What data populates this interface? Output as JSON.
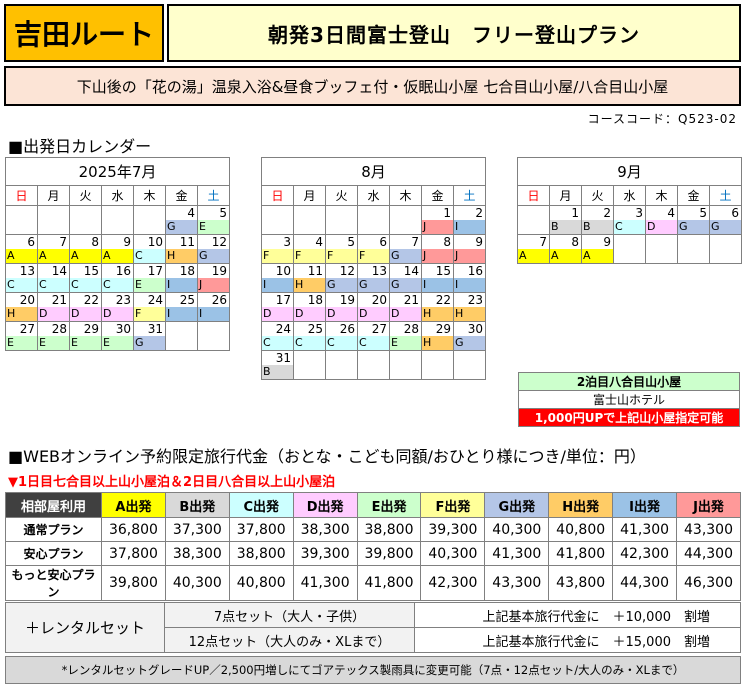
{
  "header": {
    "route": "吉田ルート",
    "title": "朝発3日間富士登山　フリー登山プラン",
    "subtitle": "下山後の「花の湯」温泉入浴&昼食ブッフェ付・仮眠山小屋 七合目山小屋/八合目山小屋",
    "course_code": "コースコード：Q523-02"
  },
  "calendar_section": {
    "label": "■出発日カレンダー"
  },
  "weekdays": [
    "日",
    "月",
    "火",
    "水",
    "木",
    "金",
    "土"
  ],
  "months": [
    {
      "title": "2025年7月",
      "weeks": [
        [
          null,
          null,
          null,
          null,
          null,
          {
            "d": "4",
            "g": "G"
          },
          {
            "d": "5",
            "g": "E"
          }
        ],
        [
          {
            "d": "6",
            "g": "A"
          },
          {
            "d": "7",
            "g": "A"
          },
          {
            "d": "8",
            "g": "A"
          },
          {
            "d": "9",
            "g": "A"
          },
          {
            "d": "10",
            "g": "C"
          },
          {
            "d": "11",
            "g": "H"
          },
          {
            "d": "12",
            "g": "G"
          }
        ],
        [
          {
            "d": "13",
            "g": "C"
          },
          {
            "d": "14",
            "g": "C"
          },
          {
            "d": "15",
            "g": "C"
          },
          {
            "d": "16",
            "g": "C"
          },
          {
            "d": "17",
            "g": "E"
          },
          {
            "d": "18",
            "g": "I"
          },
          {
            "d": "19",
            "g": "J"
          }
        ],
        [
          {
            "d": "20",
            "g": "H"
          },
          {
            "d": "21",
            "g": "D"
          },
          {
            "d": "22",
            "g": "D"
          },
          {
            "d": "23",
            "g": "D"
          },
          {
            "d": "24",
            "g": "F"
          },
          {
            "d": "25",
            "g": "I"
          },
          {
            "d": "26",
            "g": "I"
          }
        ],
        [
          {
            "d": "27",
            "g": "E"
          },
          {
            "d": "28",
            "g": "E"
          },
          {
            "d": "29",
            "g": "E"
          },
          {
            "d": "30",
            "g": "E"
          },
          {
            "d": "31",
            "g": "G"
          },
          null,
          null
        ]
      ]
    },
    {
      "title": "8月",
      "weeks": [
        [
          null,
          null,
          null,
          null,
          null,
          {
            "d": "1",
            "g": "J"
          },
          {
            "d": "2",
            "g": "I"
          }
        ],
        [
          {
            "d": "3",
            "g": "F"
          },
          {
            "d": "4",
            "g": "F"
          },
          {
            "d": "5",
            "g": "F"
          },
          {
            "d": "6",
            "g": "F"
          },
          {
            "d": "7",
            "g": "G"
          },
          {
            "d": "8",
            "g": "J"
          },
          {
            "d": "9",
            "g": "J"
          }
        ],
        [
          {
            "d": "10",
            "g": "I"
          },
          {
            "d": "11",
            "g": "H"
          },
          {
            "d": "12",
            "g": "G"
          },
          {
            "d": "13",
            "g": "G"
          },
          {
            "d": "14",
            "g": "G"
          },
          {
            "d": "15",
            "g": "I"
          },
          {
            "d": "16",
            "g": "I"
          }
        ],
        [
          {
            "d": "17",
            "g": "D"
          },
          {
            "d": "18",
            "g": "D"
          },
          {
            "d": "19",
            "g": "D"
          },
          {
            "d": "20",
            "g": "D"
          },
          {
            "d": "21",
            "g": "D"
          },
          {
            "d": "22",
            "g": "H"
          },
          {
            "d": "23",
            "g": "H"
          }
        ],
        [
          {
            "d": "24",
            "g": "C"
          },
          {
            "d": "25",
            "g": "C"
          },
          {
            "d": "26",
            "g": "C"
          },
          {
            "d": "27",
            "g": "C"
          },
          {
            "d": "28",
            "g": "E"
          },
          {
            "d": "29",
            "g": "H"
          },
          {
            "d": "30",
            "g": "G"
          }
        ],
        [
          {
            "d": "31",
            "g": "B"
          },
          null,
          null,
          null,
          null,
          null,
          null
        ]
      ]
    },
    {
      "title": "9月",
      "weeks": [
        [
          null,
          {
            "d": "1",
            "g": "B"
          },
          {
            "d": "2",
            "g": "B"
          },
          {
            "d": "3",
            "g": "C"
          },
          {
            "d": "4",
            "g": "D"
          },
          {
            "d": "5",
            "g": "G"
          },
          {
            "d": "6",
            "g": "G"
          }
        ],
        [
          {
            "d": "7",
            "g": "A"
          },
          {
            "d": "8",
            "g": "A"
          },
          {
            "d": "9",
            "g": "A"
          },
          null,
          null,
          null,
          null
        ]
      ]
    }
  ],
  "legend": {
    "title": "2泊目八合目山小屋",
    "hotel": "富士山ホテル",
    "note": "1,000円UPで上記山小屋指定可能"
  },
  "price_section": {
    "label": "■WEBオンライン予約限定旅行代金（おとな・こども同額/おひとり様につき/単位：円）",
    "note": "▼1日目七合目以上山小屋泊＆2日目八合目以上山小屋泊"
  },
  "price_table": {
    "corner": "相部屋利用",
    "columns": [
      "A出発",
      "B出発",
      "C出発",
      "D出発",
      "E出発",
      "F出発",
      "G出発",
      "H出発",
      "I出発",
      "J出発"
    ],
    "rows": [
      {
        "label": "通常プラン",
        "values": [
          "36,800",
          "37,300",
          "37,800",
          "38,300",
          "38,800",
          "39,300",
          "40,300",
          "40,800",
          "41,300",
          "43,300"
        ]
      },
      {
        "label": "安心プラン",
        "values": [
          "37,800",
          "38,300",
          "38,800",
          "39,300",
          "39,800",
          "40,300",
          "41,300",
          "41,800",
          "42,300",
          "44,300"
        ]
      },
      {
        "label": "もっと安心プラン",
        "values": [
          "39,800",
          "40,300",
          "40,800",
          "41,300",
          "41,800",
          "42,300",
          "43,300",
          "43,800",
          "44,300",
          "46,300"
        ]
      }
    ]
  },
  "rental": {
    "label": "＋レンタルセット",
    "rows": [
      {
        "set": "7点セット（大人・子供）",
        "price": "上記基本旅行代金に　＋10,000　割増"
      },
      {
        "set": "12点セット（大人のみ・XLまで）",
        "price": "上記基本旅行代金に　＋15,000　割増"
      }
    ]
  },
  "footnote": "*レンタルセットグレードUP／2,500円増しにてゴアテックス製雨具に変更可能（7点・12点セット/大人のみ・XLまで）",
  "colors": {
    "A": "#ffff00",
    "B": "#d9d9d9",
    "C": "#ccffff",
    "D": "#ffccff",
    "E": "#ccffcc",
    "F": "#ffff99",
    "G": "#b4c6e7",
    "H": "#ffcc66",
    "I": "#9bc2e6",
    "J": "#ff9999",
    "route_bg": "#ffc000",
    "title_bg": "#ffffcc",
    "subtitle_bg": "#fce4d6",
    "note_red": "#ff0000"
  }
}
